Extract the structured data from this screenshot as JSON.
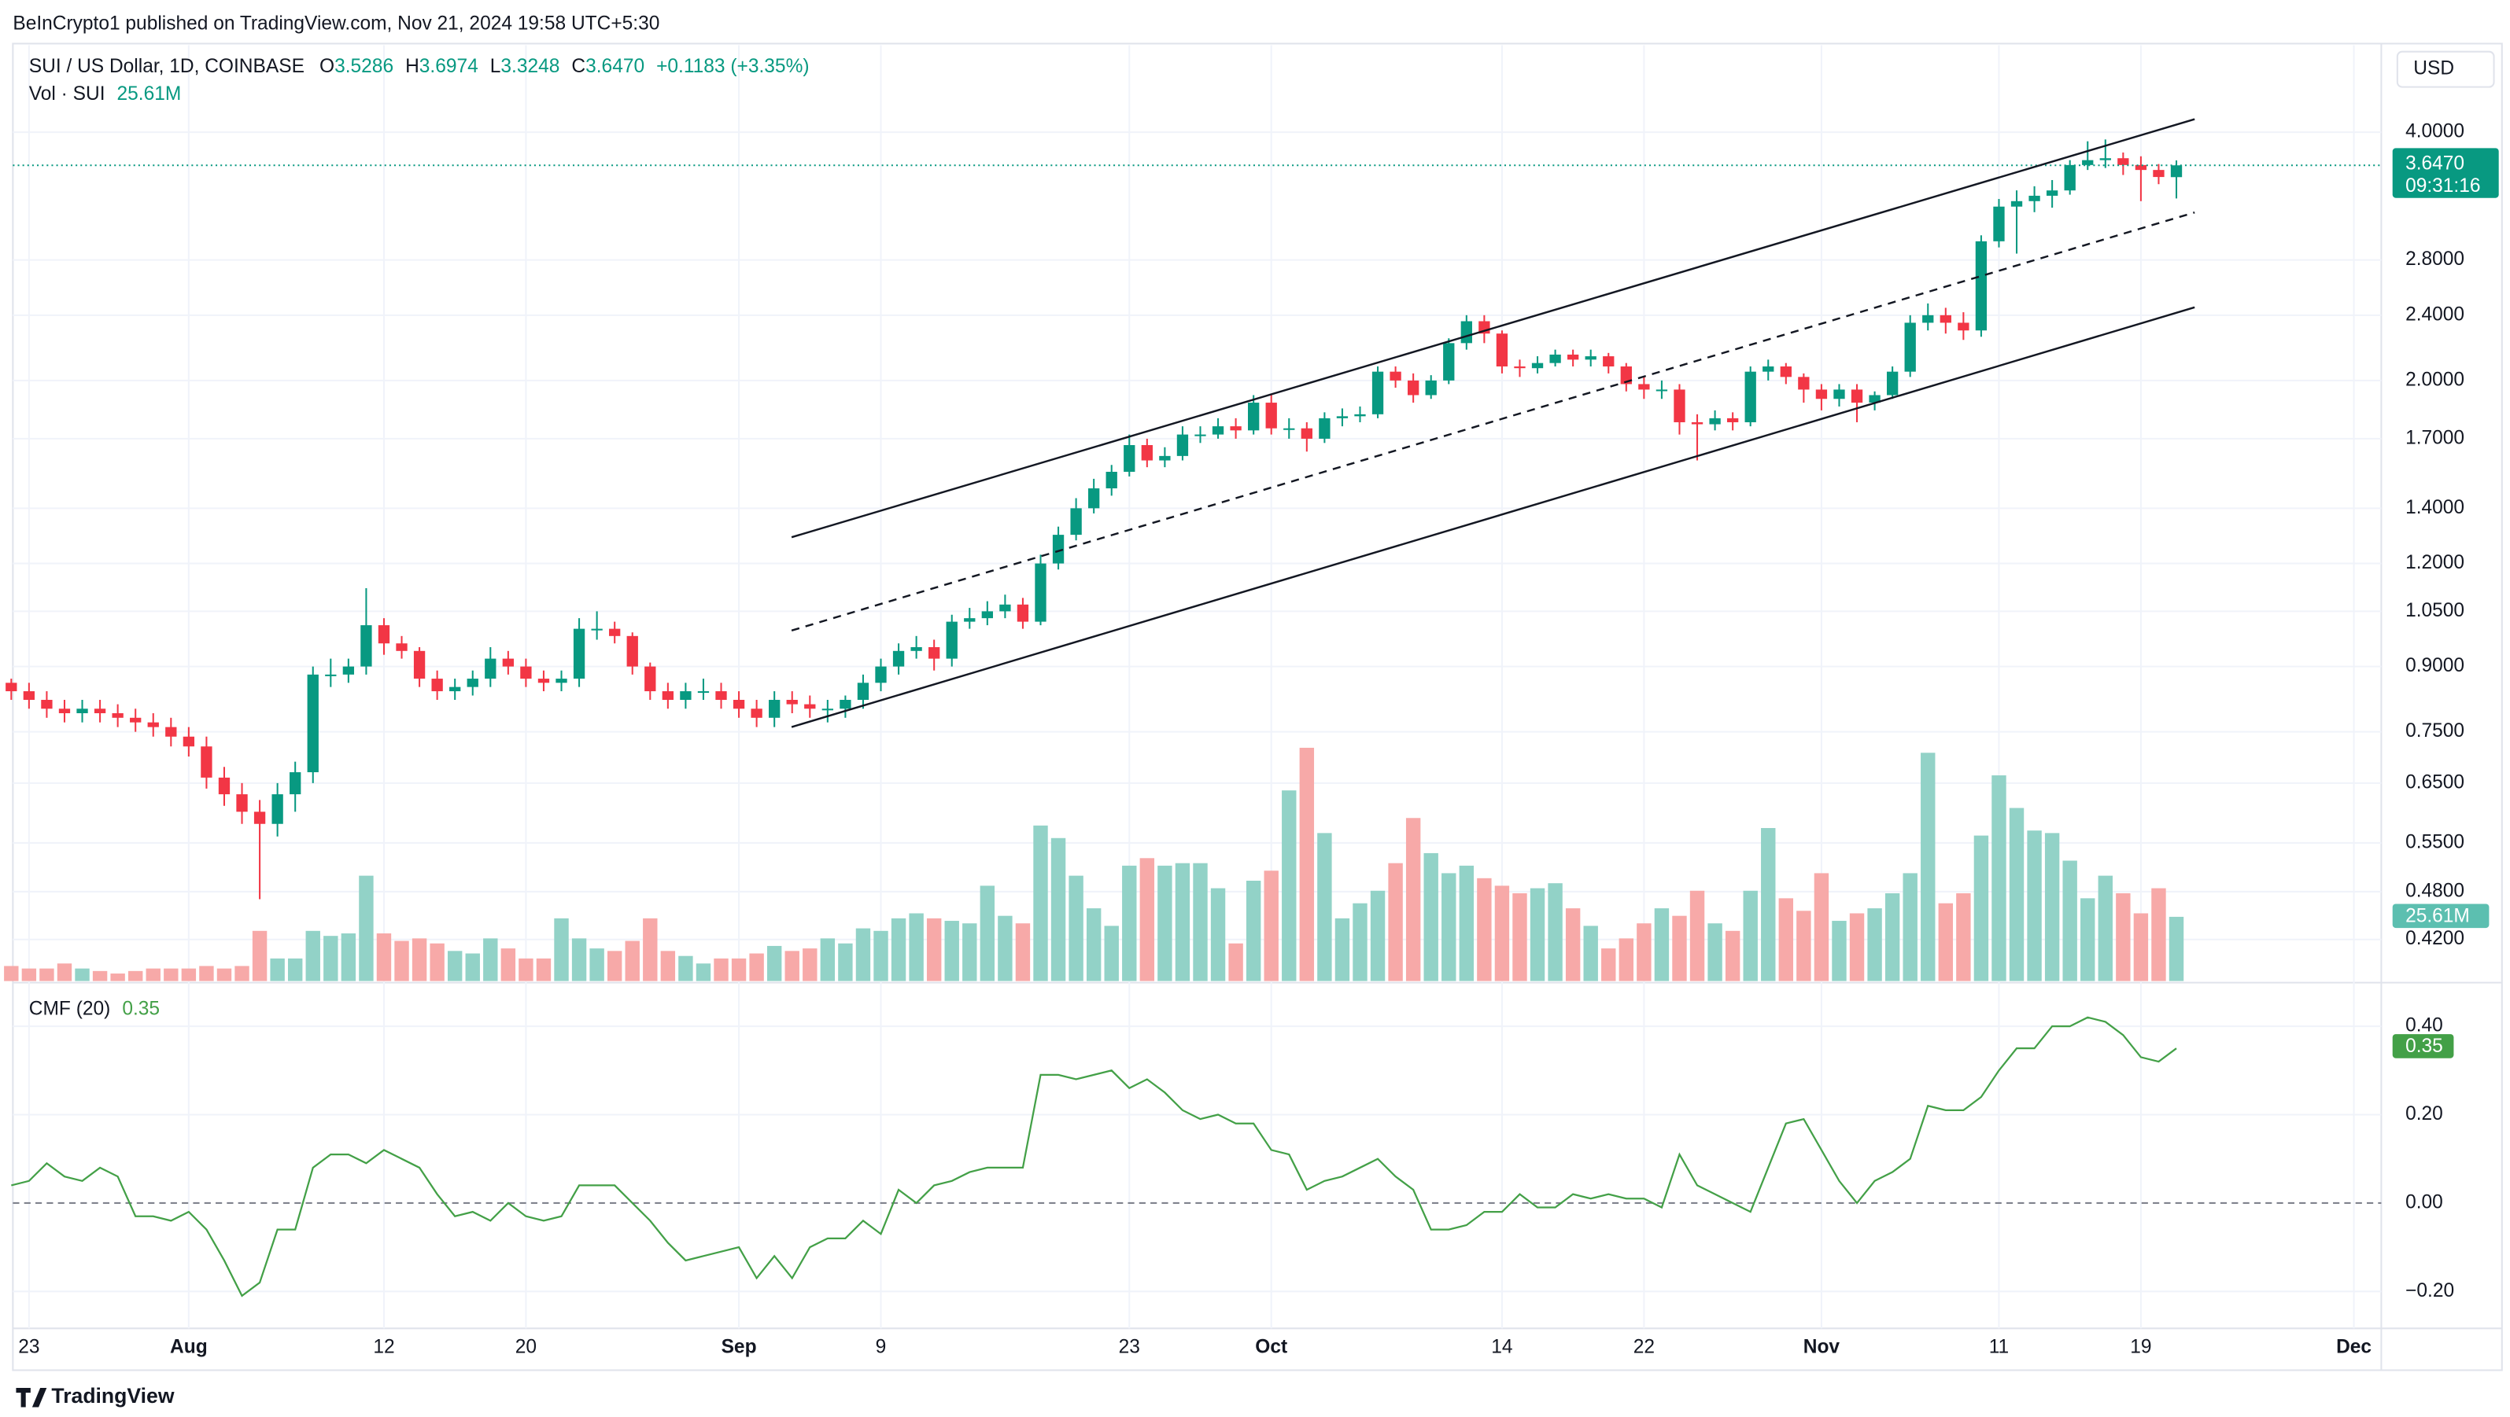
{
  "header": {
    "published": "BeInCrypto1 published on TradingView.com, Nov 21, 2024 19:58 UTC+5:30",
    "currency": "USD",
    "brand": "TradingView"
  },
  "chart_data": {
    "type": "candlestick",
    "title": "SUI / US Dollar, 1D, COINBASE",
    "ohlc_labels": [
      "O",
      "H",
      "L",
      "C"
    ],
    "close_label": "3.6470",
    "change": "+0.1183 (+3.35%)",
    "countdown": "09:31:16",
    "x": [
      "07-22",
      "07-23",
      "07-24",
      "07-25",
      "07-26",
      "07-27",
      "07-28",
      "07-29",
      "07-30",
      "07-31",
      "08-01",
      "08-02",
      "08-03",
      "08-04",
      "08-05",
      "08-06",
      "08-07",
      "08-08",
      "08-09",
      "08-10",
      "08-11",
      "08-12",
      "08-13",
      "08-14",
      "08-15",
      "08-16",
      "08-17",
      "08-18",
      "08-19",
      "08-20",
      "08-21",
      "08-22",
      "08-23",
      "08-24",
      "08-25",
      "08-26",
      "08-27",
      "08-28",
      "08-29",
      "08-30",
      "08-31",
      "09-01",
      "09-02",
      "09-03",
      "09-04",
      "09-05",
      "09-06",
      "09-07",
      "09-08",
      "09-09",
      "09-10",
      "09-11",
      "09-12",
      "09-13",
      "09-14",
      "09-15",
      "09-16",
      "09-17",
      "09-18",
      "09-19",
      "09-20",
      "09-21",
      "09-22",
      "09-23",
      "09-24",
      "09-25",
      "09-26",
      "09-27",
      "09-28",
      "09-29",
      "09-30",
      "10-01",
      "10-02",
      "10-03",
      "10-04",
      "10-05",
      "10-06",
      "10-07",
      "10-08",
      "10-09",
      "10-10",
      "10-11",
      "10-12",
      "10-13",
      "10-14",
      "10-15",
      "10-16",
      "10-17",
      "10-18",
      "10-19",
      "10-20",
      "10-21",
      "10-22",
      "10-23",
      "10-24",
      "10-25",
      "10-26",
      "10-27",
      "10-28",
      "10-29",
      "10-30",
      "10-31",
      "11-01",
      "11-02",
      "11-03",
      "11-04",
      "11-05",
      "11-06",
      "11-07",
      "11-08",
      "11-09",
      "11-10",
      "11-11",
      "11-12",
      "11-13",
      "11-14",
      "11-15",
      "11-16",
      "11-17",
      "11-18",
      "11-19",
      "11-20",
      "11-21"
    ],
    "open": [
      0.86,
      0.84,
      0.82,
      0.8,
      0.79,
      0.8,
      0.79,
      0.78,
      0.77,
      0.76,
      0.74,
      0.72,
      0.66,
      0.63,
      0.6,
      0.58,
      0.63,
      0.67,
      0.88,
      0.88,
      0.9,
      1.01,
      0.96,
      0.94,
      0.87,
      0.84,
      0.85,
      0.87,
      0.92,
      0.9,
      0.87,
      0.86,
      0.87,
      1.0,
      1.0,
      0.98,
      0.9,
      0.84,
      0.82,
      0.84,
      0.84,
      0.82,
      0.8,
      0.78,
      0.82,
      0.81,
      0.8,
      0.8,
      0.82,
      0.86,
      0.9,
      0.94,
      0.95,
      0.92,
      1.02,
      1.03,
      1.05,
      1.07,
      1.02,
      1.2,
      1.3,
      1.4,
      1.48,
      1.55,
      1.67,
      1.6,
      1.62,
      1.72,
      1.72,
      1.76,
      1.74,
      1.88,
      1.75,
      1.75,
      1.7,
      1.8,
      1.81,
      1.82,
      2.05,
      2.0,
      1.92,
      2.0,
      2.22,
      2.36,
      2.28,
      2.08,
      2.07,
      2.1,
      2.15,
      2.12,
      2.14,
      2.08,
      1.98,
      1.95,
      1.95,
      1.78,
      1.77,
      1.8,
      1.78,
      2.05,
      2.08,
      2.02,
      1.95,
      1.9,
      1.95,
      1.88,
      1.92,
      2.05,
      2.35,
      2.4,
      2.35,
      2.3,
      2.95,
      3.25,
      3.3,
      3.35,
      3.4,
      3.65,
      3.7,
      3.72,
      3.65,
      3.6,
      3.5286
    ],
    "high": [
      0.87,
      0.86,
      0.84,
      0.82,
      0.82,
      0.82,
      0.81,
      0.8,
      0.79,
      0.78,
      0.76,
      0.74,
      0.68,
      0.65,
      0.62,
      0.65,
      0.69,
      0.9,
      0.92,
      0.92,
      1.12,
      1.03,
      0.98,
      0.95,
      0.89,
      0.87,
      0.89,
      0.95,
      0.94,
      0.92,
      0.89,
      0.89,
      1.03,
      1.05,
      1.02,
      0.99,
      0.91,
      0.86,
      0.86,
      0.87,
      0.86,
      0.84,
      0.82,
      0.84,
      0.84,
      0.83,
      0.82,
      0.83,
      0.88,
      0.92,
      0.96,
      0.98,
      0.97,
      1.04,
      1.06,
      1.08,
      1.1,
      1.09,
      1.23,
      1.33,
      1.44,
      1.52,
      1.58,
      1.72,
      1.7,
      1.66,
      1.76,
      1.76,
      1.8,
      1.8,
      1.92,
      1.92,
      1.8,
      1.78,
      1.83,
      1.85,
      1.86,
      2.08,
      2.08,
      2.04,
      2.03,
      2.25,
      2.4,
      2.4,
      2.3,
      2.12,
      2.14,
      2.18,
      2.18,
      2.18,
      2.16,
      2.1,
      2.02,
      2.0,
      1.98,
      1.82,
      1.84,
      1.83,
      2.08,
      2.12,
      2.1,
      2.04,
      1.98,
      1.98,
      1.98,
      1.94,
      2.08,
      2.4,
      2.48,
      2.45,
      2.42,
      3.0,
      3.32,
      3.4,
      3.44,
      3.5,
      3.7,
      3.9,
      3.92,
      3.78,
      3.74,
      3.66,
      3.6974
    ],
    "low": [
      0.82,
      0.8,
      0.78,
      0.77,
      0.77,
      0.77,
      0.76,
      0.75,
      0.74,
      0.72,
      0.7,
      0.64,
      0.61,
      0.58,
      0.47,
      0.56,
      0.6,
      0.65,
      0.85,
      0.86,
      0.88,
      0.93,
      0.92,
      0.85,
      0.82,
      0.82,
      0.83,
      0.85,
      0.88,
      0.85,
      0.84,
      0.84,
      0.85,
      0.97,
      0.96,
      0.88,
      0.82,
      0.8,
      0.8,
      0.82,
      0.8,
      0.78,
      0.76,
      0.76,
      0.79,
      0.78,
      0.77,
      0.78,
      0.8,
      0.84,
      0.88,
      0.92,
      0.89,
      0.9,
      1.0,
      1.01,
      1.03,
      1.0,
      1.01,
      1.18,
      1.28,
      1.38,
      1.45,
      1.53,
      1.57,
      1.57,
      1.6,
      1.68,
      1.7,
      1.7,
      1.72,
      1.72,
      1.7,
      1.64,
      1.68,
      1.76,
      1.78,
      1.8,
      1.96,
      1.88,
      1.9,
      1.98,
      2.18,
      2.22,
      2.04,
      2.02,
      2.04,
      2.08,
      2.08,
      2.08,
      2.04,
      1.94,
      1.9,
      1.9,
      1.72,
      1.6,
      1.74,
      1.74,
      1.76,
      2.0,
      1.98,
      1.88,
      1.84,
      1.86,
      1.78,
      1.84,
      1.9,
      2.02,
      2.3,
      2.28,
      2.24,
      2.26,
      2.9,
      2.85,
      3.2,
      3.24,
      3.36,
      3.6,
      3.62,
      3.55,
      3.3,
      3.46,
      3.3248
    ],
    "close": [
      0.84,
      0.82,
      0.8,
      0.79,
      0.8,
      0.79,
      0.78,
      0.77,
      0.76,
      0.74,
      0.72,
      0.66,
      0.63,
      0.6,
      0.58,
      0.63,
      0.67,
      0.88,
      0.88,
      0.9,
      1.01,
      0.96,
      0.94,
      0.87,
      0.84,
      0.85,
      0.87,
      0.92,
      0.9,
      0.87,
      0.86,
      0.87,
      1.0,
      1.0,
      0.98,
      0.9,
      0.84,
      0.82,
      0.84,
      0.84,
      0.82,
      0.8,
      0.78,
      0.82,
      0.81,
      0.8,
      0.8,
      0.82,
      0.86,
      0.9,
      0.94,
      0.95,
      0.92,
      1.02,
      1.03,
      1.05,
      1.07,
      1.02,
      1.2,
      1.3,
      1.4,
      1.48,
      1.55,
      1.67,
      1.6,
      1.62,
      1.72,
      1.72,
      1.76,
      1.74,
      1.88,
      1.75,
      1.75,
      1.7,
      1.8,
      1.81,
      1.82,
      2.05,
      2.0,
      1.92,
      2.0,
      2.22,
      2.36,
      2.28,
      2.08,
      2.07,
      2.1,
      2.15,
      2.12,
      2.14,
      2.08,
      1.98,
      1.95,
      1.95,
      1.78,
      1.77,
      1.8,
      1.78,
      2.05,
      2.08,
      2.02,
      1.95,
      1.9,
      1.95,
      1.88,
      1.92,
      2.05,
      2.35,
      2.4,
      2.35,
      2.3,
      2.95,
      3.25,
      3.3,
      3.35,
      3.4,
      3.65,
      3.7,
      3.72,
      3.65,
      3.6,
      3.53,
      3.647
    ],
    "up_color": "#089981",
    "down_color": "#f23645",
    "log_scale": true,
    "grid": true,
    "ylim": [
      0.374,
      5.1
    ],
    "yticks": [
      {
        "value": 4,
        "label": "4.0000"
      },
      {
        "value": 2.8,
        "label": "2.8000"
      },
      {
        "value": 2.4,
        "label": "2.4000"
      },
      {
        "value": 2,
        "label": "2.0000"
      },
      {
        "value": 1.7,
        "label": "1.7000"
      },
      {
        "value": 1.4,
        "label": "1.4000"
      },
      {
        "value": 1.2,
        "label": "1.2000"
      },
      {
        "value": 1.05,
        "label": "1.0500"
      },
      {
        "value": 0.9,
        "label": "0.9000"
      },
      {
        "value": 0.75,
        "label": "0.7500"
      },
      {
        "value": 0.65,
        "label": "0.6500"
      },
      {
        "value": 0.55,
        "label": "0.5500"
      },
      {
        "value": 0.48,
        "label": "0.4800"
      },
      {
        "value": 0.42,
        "label": "0.4200"
      }
    ],
    "xticks": [
      {
        "value": "07-23",
        "label": "23"
      },
      {
        "value": "08-01",
        "label": "Aug"
      },
      {
        "value": "08-12",
        "label": "12"
      },
      {
        "value": "08-20",
        "label": "20"
      },
      {
        "value": "09-01",
        "label": "Sep"
      },
      {
        "value": "09-09",
        "label": "9"
      },
      {
        "value": "09-23",
        "label": "23"
      },
      {
        "value": "10-01",
        "label": "Oct"
      },
      {
        "value": "10-14",
        "label": "14"
      },
      {
        "value": "10-22",
        "label": "22"
      },
      {
        "value": "11-01",
        "label": "Nov"
      },
      {
        "value": "11-11",
        "label": "11"
      },
      {
        "value": "11-19",
        "label": "19"
      },
      {
        "value": "12-01",
        "label": "Dec"
      }
    ],
    "volume": {
      "name": "Vol · SUI",
      "last_label": "25.61M",
      "ylim": [
        0,
        100
      ],
      "up_color": "#92d2c7",
      "down_color": "#f7a9a8",
      "values": [
        6,
        5,
        5,
        7,
        5,
        4,
        3,
        4,
        5,
        5,
        5,
        6,
        5,
        6,
        20,
        9,
        9,
        20,
        18,
        19,
        42,
        19,
        16,
        17,
        15,
        12,
        11,
        17,
        13,
        9,
        9,
        25,
        17,
        13,
        12,
        16,
        25,
        12,
        10,
        7,
        9,
        9,
        11,
        14,
        12,
        13,
        17,
        15,
        21,
        20,
        25,
        27,
        25,
        24,
        23,
        38,
        26,
        23,
        62,
        57,
        42,
        29,
        22,
        46,
        49,
        46,
        47,
        47,
        37,
        15,
        40,
        44,
        76,
        93,
        59,
        25,
        31,
        36,
        47,
        65,
        51,
        43,
        46,
        41,
        38,
        35,
        37,
        39,
        29,
        22,
        13,
        17,
        23,
        29,
        26,
        36,
        23,
        20,
        36,
        61,
        33,
        28,
        43,
        24,
        27,
        29,
        35,
        43,
        91,
        31,
        35,
        58,
        82,
        69,
        60,
        59,
        48,
        33,
        42,
        35,
        27,
        37,
        25.61
      ]
    },
    "cmf": {
      "name": "CMF (20)",
      "color": "#43a047",
      "ylim": [
        -0.28,
        0.495
      ],
      "yticks": [
        {
          "value": 0.4,
          "label": "0.40"
        },
        {
          "value": 0.2,
          "label": "0.20"
        },
        {
          "value": 0,
          "label": "0.00"
        },
        {
          "value": -0.2,
          "label": "−0.20"
        }
      ],
      "values": [
        0.04,
        0.05,
        0.09,
        0.06,
        0.05,
        0.08,
        0.06,
        -0.03,
        -0.03,
        -0.04,
        -0.02,
        -0.06,
        -0.13,
        -0.21,
        -0.18,
        -0.06,
        -0.06,
        0.08,
        0.11,
        0.11,
        0.09,
        0.12,
        0.1,
        0.08,
        0.02,
        -0.03,
        -0.02,
        -0.04,
        0.0,
        -0.03,
        -0.04,
        -0.03,
        0.04,
        0.04,
        0.04,
        0.0,
        -0.04,
        -0.09,
        -0.13,
        -0.12,
        -0.11,
        -0.1,
        -0.17,
        -0.12,
        -0.17,
        -0.1,
        -0.08,
        -0.08,
        -0.04,
        -0.07,
        0.03,
        0.0,
        0.04,
        0.05,
        0.07,
        0.08,
        0.08,
        0.08,
        0.29,
        0.29,
        0.28,
        0.29,
        0.3,
        0.26,
        0.28,
        0.25,
        0.21,
        0.19,
        0.2,
        0.18,
        0.18,
        0.12,
        0.11,
        0.03,
        0.05,
        0.06,
        0.08,
        0.1,
        0.06,
        0.03,
        -0.06,
        -0.06,
        -0.05,
        -0.02,
        -0.02,
        0.02,
        -0.01,
        -0.01,
        0.02,
        0.01,
        0.02,
        0.01,
        0.01,
        -0.01,
        0.11,
        0.04,
        0.02,
        0.0,
        -0.02,
        0.08,
        0.18,
        0.19,
        0.12,
        0.05,
        0.0,
        0.05,
        0.07,
        0.1,
        0.22,
        0.21,
        0.21,
        0.24,
        0.3,
        0.35,
        0.35,
        0.4,
        0.4,
        0.42,
        0.41,
        0.38,
        0.33,
        0.32,
        0.35
      ]
    }
  }
}
